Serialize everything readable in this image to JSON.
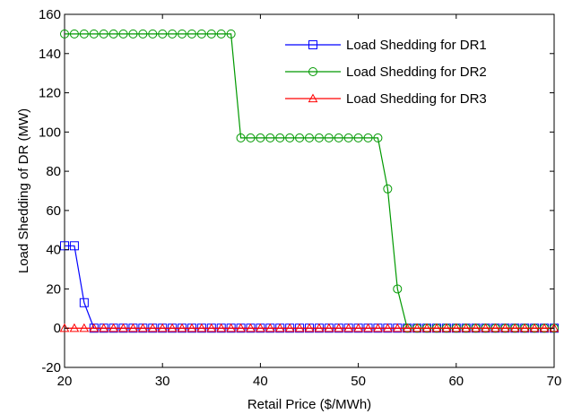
{
  "chart_data": {
    "type": "line",
    "title": "",
    "xlabel": "Retail Price ($/MWh)",
    "ylabel": "Load Shedding of DR (MW)",
    "xlim": [
      20,
      70
    ],
    "ylim": [
      -20,
      160
    ],
    "xticks": [
      "20",
      "30",
      "40",
      "50",
      "60",
      "70"
    ],
    "yticks": [
      "-20",
      "0",
      "20",
      "40",
      "60",
      "80",
      "100",
      "120",
      "140",
      "160"
    ],
    "grid": false,
    "legend_position": "top-right",
    "series": [
      {
        "name": "Load Shedding for DR1",
        "color": "#0000ff",
        "marker": "square",
        "x": [
          20,
          21,
          22,
          23,
          24,
          25,
          26,
          27,
          28,
          29,
          30,
          31,
          32,
          33,
          34,
          35,
          36,
          37,
          38,
          39,
          40,
          41,
          42,
          43,
          44,
          45,
          46,
          47,
          48,
          49,
          50,
          51,
          52,
          53,
          54,
          55,
          56,
          57,
          58,
          59,
          60,
          61,
          62,
          63,
          64,
          65,
          66,
          67,
          68,
          69,
          70
        ],
        "values": [
          42,
          42,
          13,
          0,
          0,
          0,
          0,
          0,
          0,
          0,
          0,
          0,
          0,
          0,
          0,
          0,
          0,
          0,
          0,
          0,
          0,
          0,
          0,
          0,
          0,
          0,
          0,
          0,
          0,
          0,
          0,
          0,
          0,
          0,
          0,
          0,
          0,
          0,
          0,
          0,
          0,
          0,
          0,
          0,
          0,
          0,
          0,
          0,
          0,
          0,
          0
        ]
      },
      {
        "name": "Load Shedding for DR2",
        "color": "#009900",
        "marker": "circle",
        "x": [
          20,
          21,
          22,
          23,
          24,
          25,
          26,
          27,
          28,
          29,
          30,
          31,
          32,
          33,
          34,
          35,
          36,
          37,
          38,
          39,
          40,
          41,
          42,
          43,
          44,
          45,
          46,
          47,
          48,
          49,
          50,
          51,
          52,
          53,
          54,
          55,
          56,
          57,
          58,
          59,
          60,
          61,
          62,
          63,
          64,
          65,
          66,
          67,
          68,
          69,
          70
        ],
        "values": [
          150,
          150,
          150,
          150,
          150,
          150,
          150,
          150,
          150,
          150,
          150,
          150,
          150,
          150,
          150,
          150,
          150,
          150,
          97,
          97,
          97,
          97,
          97,
          97,
          97,
          97,
          97,
          97,
          97,
          97,
          97,
          97,
          97,
          71,
          20,
          0,
          0,
          0,
          0,
          0,
          0,
          0,
          0,
          0,
          0,
          0,
          0,
          0,
          0,
          0,
          0
        ]
      },
      {
        "name": "Load Shedding for DR3",
        "color": "#ff0000",
        "marker": "triangle",
        "x": [
          20,
          21,
          22,
          23,
          24,
          25,
          26,
          27,
          28,
          29,
          30,
          31,
          32,
          33,
          34,
          35,
          36,
          37,
          38,
          39,
          40,
          41,
          42,
          43,
          44,
          45,
          46,
          47,
          48,
          49,
          50,
          51,
          52,
          53,
          54,
          55,
          56,
          57,
          58,
          59,
          60,
          61,
          62,
          63,
          64,
          65,
          66,
          67,
          68,
          69,
          70
        ],
        "values": [
          0,
          0,
          0,
          0,
          0,
          0,
          0,
          0,
          0,
          0,
          0,
          0,
          0,
          0,
          0,
          0,
          0,
          0,
          0,
          0,
          0,
          0,
          0,
          0,
          0,
          0,
          0,
          0,
          0,
          0,
          0,
          0,
          0,
          0,
          0,
          0,
          0,
          0,
          0,
          0,
          0,
          0,
          0,
          0,
          0,
          0,
          0,
          0,
          0,
          0,
          0
        ]
      }
    ]
  }
}
